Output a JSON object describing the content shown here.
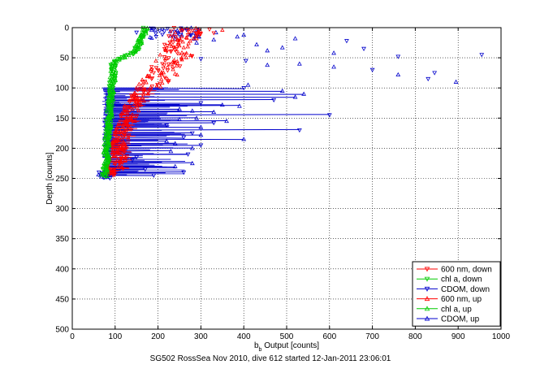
{
  "chart_data": {
    "type": "scatter",
    "title": "",
    "xlabel": "b_b Output [counts]",
    "xlabel_main": "b",
    "xlabel_sub": "b",
    "xlabel_rest": " Output [counts]",
    "ylabel": "Depth [counts]",
    "caption": "SG502 RossSea Nov 2010, dive 612 started 12-Jan-2011 23:06:01",
    "xlim": [
      0,
      1000
    ],
    "ylim": [
      0,
      500
    ],
    "y_reversed": true,
    "grid": true,
    "legend_position": "lower-right",
    "x_ticks": [
      "0",
      "100",
      "200",
      "300",
      "400",
      "500",
      "600",
      "700",
      "800",
      "900",
      "1000"
    ],
    "y_ticks": [
      "0",
      "50",
      "100",
      "150",
      "200",
      "250",
      "300",
      "350",
      "400",
      "450",
      "500"
    ],
    "series": [
      {
        "name": "600 nm, down",
        "color": "#ff0000",
        "marker": "triangle-down",
        "style": "line"
      },
      {
        "name": "chl a, down",
        "color": "#00cc00",
        "marker": "triangle-down",
        "style": "line"
      },
      {
        "name": "CDOM, down",
        "color": "#0000cc",
        "marker": "triangle-down",
        "style": "line"
      },
      {
        "name": "600 nm, up",
        "color": "#ff0000",
        "marker": "triangle-up",
        "style": "line"
      },
      {
        "name": "chl a, up",
        "color": "#00cc00",
        "marker": "triangle-up",
        "style": "line"
      },
      {
        "name": "CDOM, up",
        "color": "#0000cc",
        "marker": "triangle-up",
        "style": "line"
      }
    ],
    "profiles": {
      "chl": [
        [
          170,
          0
        ],
        [
          165,
          10
        ],
        [
          160,
          20
        ],
        [
          150,
          35
        ],
        [
          135,
          45
        ],
        [
          115,
          50
        ],
        [
          100,
          55
        ],
        [
          95,
          65
        ],
        [
          95,
          80
        ],
        [
          92,
          100
        ],
        [
          88,
          130
        ],
        [
          85,
          160
        ],
        [
          80,
          190
        ],
        [
          80,
          220
        ],
        [
          75,
          245
        ]
      ],
      "red": [
        [
          270,
          0
        ],
        [
          275,
          10
        ],
        [
          240,
          25
        ],
        [
          250,
          45
        ],
        [
          220,
          60
        ],
        [
          210,
          80
        ],
        [
          180,
          95
        ],
        [
          160,
          110
        ],
        [
          140,
          130
        ],
        [
          130,
          150
        ],
        [
          120,
          170
        ],
        [
          110,
          190
        ],
        [
          110,
          210
        ],
        [
          100,
          230
        ],
        [
          95,
          245
        ]
      ],
      "blue_spikes": [
        [
          100,
          400
        ],
        [
          105,
          490
        ],
        [
          110,
          540
        ],
        [
          115,
          520
        ],
        [
          120,
          470
        ],
        [
          125,
          300
        ],
        [
          128,
          350
        ],
        [
          130,
          390
        ],
        [
          135,
          250
        ],
        [
          138,
          280
        ],
        [
          140,
          330
        ],
        [
          145,
          600
        ],
        [
          150,
          290
        ],
        [
          152,
          250
        ],
        [
          155,
          360
        ],
        [
          158,
          330
        ],
        [
          162,
          220
        ],
        [
          165,
          300
        ],
        [
          170,
          530
        ],
        [
          175,
          280
        ],
        [
          178,
          300
        ],
        [
          182,
          260
        ],
        [
          185,
          400
        ],
        [
          188,
          220
        ],
        [
          192,
          240
        ],
        [
          195,
          300
        ],
        [
          200,
          280
        ],
        [
          205,
          230
        ],
        [
          210,
          270
        ],
        [
          215,
          150
        ],
        [
          220,
          140
        ],
        [
          225,
          280
        ],
        [
          230,
          240
        ],
        [
          235,
          170
        ],
        [
          240,
          260
        ],
        [
          245,
          190
        ]
      ],
      "blue_near_surface": [
        [
          4,
          185
        ],
        [
          6,
          215
        ],
        [
          5,
          245
        ],
        [
          8,
          335
        ],
        [
          12,
          400
        ],
        [
          15,
          385
        ],
        [
          20,
          330
        ],
        [
          28,
          430
        ],
        [
          33,
          490
        ],
        [
          38,
          455
        ],
        [
          42,
          610
        ],
        [
          55,
          405
        ],
        [
          60,
          530
        ],
        [
          62,
          455
        ],
        [
          70,
          700
        ],
        [
          75,
          845
        ],
        [
          78,
          760
        ],
        [
          85,
          830
        ],
        [
          90,
          895
        ],
        [
          95,
          410
        ],
        [
          45,
          955
        ],
        [
          18,
          520
        ],
        [
          25,
          290
        ],
        [
          52,
          300
        ],
        [
          35,
          680
        ],
        [
          65,
          610
        ],
        [
          48,
          760
        ],
        [
          22,
          640
        ],
        [
          8,
          150
        ],
        [
          3,
          210
        ]
      ],
      "red_scatter": [
        [
          2,
          260
        ],
        [
          5,
          280
        ],
        [
          8,
          240
        ],
        [
          10,
          300
        ],
        [
          4,
          350
        ],
        [
          12,
          270
        ],
        [
          15,
          255
        ],
        [
          6,
          230
        ],
        [
          18,
          290
        ],
        [
          20,
          245
        ],
        [
          25,
          235
        ],
        [
          30,
          250
        ],
        [
          35,
          215
        ],
        [
          40,
          230
        ],
        [
          45,
          205
        ],
        [
          50,
          225
        ],
        [
          55,
          195
        ],
        [
          60,
          210
        ],
        [
          65,
          185
        ],
        [
          70,
          200
        ],
        [
          75,
          190
        ],
        [
          80,
          175
        ],
        [
          85,
          185
        ],
        [
          90,
          165
        ],
        [
          3,
          320
        ],
        [
          9,
          330
        ],
        [
          14,
          225
        ],
        [
          22,
          275
        ],
        [
          28,
          215
        ],
        [
          33,
          260
        ]
      ],
      "blue_base_x": 70
    }
  }
}
